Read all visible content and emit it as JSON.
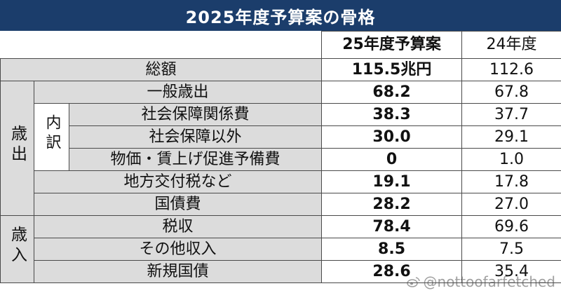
{
  "title": "2025年度予算案の骨格",
  "columns": {
    "current": "25年度予算案",
    "previous": "24年度"
  },
  "total": {
    "label": "総額",
    "current": "115.5兆円",
    "previous": "112.6"
  },
  "groups": {
    "expenditure": "歳出",
    "breakdown": "内訳",
    "revenue": "歳入"
  },
  "rows": [
    {
      "label": "一般歳出",
      "current": "68.2",
      "previous": "67.8"
    },
    {
      "label": "社会保障関係費",
      "current": "38.3",
      "previous": "37.7"
    },
    {
      "label": "社会保障以外",
      "current": "30.0",
      "previous": "29.1"
    },
    {
      "label": "物価・賃上げ促進予備費",
      "current": "0",
      "previous": "1.0"
    },
    {
      "label": "地方交付税など",
      "current": "19.1",
      "previous": "17.8"
    },
    {
      "label": "国債費",
      "current": "28.2",
      "previous": "27.0"
    },
    {
      "label": "税収",
      "current": "78.4",
      "previous": "69.6"
    },
    {
      "label": "その他収入",
      "current": "8.5",
      "previous": "7.5"
    },
    {
      "label": "新規国債",
      "current": "28.6",
      "previous": "35.4"
    }
  ],
  "watermark": "@nottoofarfetched",
  "colors": {
    "header_bg": "#1b3d6b",
    "label_bg": "#dcdcdc"
  }
}
